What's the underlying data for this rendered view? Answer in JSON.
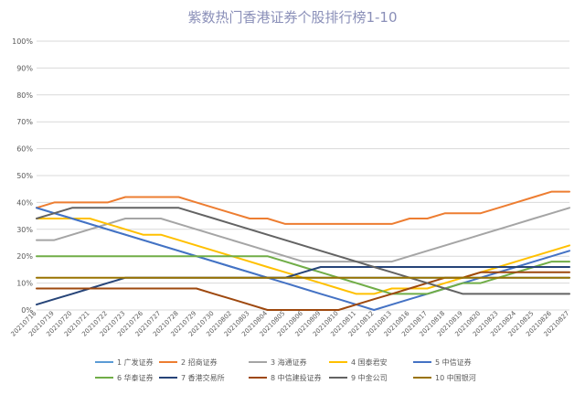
{
  "chart_data": {
    "type": "line",
    "title": "紫数热门香港证券个股排行榜1-10",
    "xlabel": "",
    "ylabel": "",
    "ylim": [
      0,
      100
    ],
    "yticks": [
      "0%",
      "10%",
      "20%",
      "30%",
      "40%",
      "50%",
      "60%",
      "70%",
      "80%",
      "90%",
      "100%"
    ],
    "x": [
      "20210716",
      "20210719",
      "20210720",
      "20210721",
      "20210722",
      "20210723",
      "20210726",
      "20210727",
      "20210728",
      "20210729",
      "20210730",
      "20210802",
      "20210803",
      "20210804",
      "20210805",
      "20210806",
      "20210809",
      "20210810",
      "20210811",
      "20210812",
      "20210813",
      "20210816",
      "20210817",
      "20210818",
      "20210819",
      "20210820",
      "20210823",
      "20210824",
      "20210825",
      "20210826",
      "20210827"
    ],
    "grid": true,
    "legend_position": "bottom",
    "series": [
      {
        "name": "1 广发证券",
        "color": "#5b9bd5",
        "values": [
          38,
          36,
          34,
          32,
          30,
          28,
          26,
          24,
          22,
          20,
          18,
          16,
          14,
          12,
          12,
          12,
          12,
          12,
          12,
          12,
          12,
          12,
          12,
          12,
          12,
          12,
          12,
          12,
          12,
          12,
          12
        ]
      },
      {
        "name": "2 招商证券",
        "color": "#ed7d31",
        "values": [
          38,
          40,
          40,
          40,
          40,
          42,
          42,
          42,
          42,
          40,
          38,
          36,
          34,
          34,
          32,
          32,
          32,
          32,
          32,
          32,
          32,
          34,
          34,
          36,
          36,
          36,
          38,
          40,
          42,
          44,
          44
        ]
      },
      {
        "name": "3 海通证券",
        "color": "#a5a5a5",
        "values": [
          26,
          26,
          28,
          30,
          32,
          34,
          34,
          34,
          32,
          30,
          28,
          26,
          24,
          22,
          20,
          18,
          18,
          18,
          18,
          18,
          18,
          20,
          22,
          24,
          26,
          28,
          30,
          32,
          34,
          36,
          38
        ]
      },
      {
        "name": "4 国泰君安",
        "color": "#ffc000",
        "values": [
          34,
          34,
          34,
          34,
          32,
          30,
          28,
          28,
          26,
          24,
          22,
          20,
          18,
          16,
          14,
          12,
          10,
          8,
          6,
          6,
          8,
          8,
          8,
          10,
          12,
          14,
          16,
          18,
          20,
          22,
          24
        ]
      },
      {
        "name": "5 中信证券",
        "color": "#4472c4",
        "values": [
          38,
          36,
          34,
          32,
          30,
          28,
          26,
          24,
          22,
          20,
          18,
          16,
          14,
          12,
          10,
          8,
          6,
          4,
          2,
          0,
          2,
          4,
          6,
          8,
          10,
          12,
          14,
          16,
          18,
          20,
          22
        ]
      },
      {
        "name": "6 华泰证券",
        "color": "#70ad47",
        "values": [
          20,
          20,
          20,
          20,
          20,
          20,
          20,
          20,
          20,
          20,
          20,
          20,
          20,
          20,
          18,
          16,
          14,
          12,
          10,
          8,
          6,
          6,
          6,
          8,
          10,
          10,
          12,
          14,
          16,
          18,
          18
        ]
      },
      {
        "name": "7 香港交易所",
        "color": "#264478",
        "values": [
          2,
          4,
          6,
          8,
          10,
          12,
          12,
          12,
          12,
          12,
          12,
          12,
          12,
          12,
          12,
          14,
          16,
          16,
          16,
          16,
          16,
          16,
          16,
          16,
          16,
          16,
          16,
          16,
          16,
          16,
          16
        ]
      },
      {
        "name": "8 中信建投证券",
        "color": "#9e480e",
        "values": [
          8,
          8,
          8,
          8,
          8,
          8,
          8,
          8,
          8,
          8,
          6,
          4,
          2,
          0,
          0,
          0,
          0,
          0,
          2,
          4,
          6,
          8,
          10,
          12,
          12,
          14,
          14,
          14,
          14,
          14,
          14
        ]
      },
      {
        "name": "9 中金公司",
        "color": "#636363",
        "values": [
          34,
          36,
          38,
          38,
          38,
          38,
          38,
          38,
          38,
          36,
          34,
          32,
          30,
          28,
          26,
          24,
          22,
          20,
          18,
          16,
          14,
          12,
          10,
          8,
          6,
          6,
          6,
          6,
          6,
          6,
          6
        ]
      },
      {
        "name": "10 中国银河",
        "color": "#997300",
        "values": [
          12,
          12,
          12,
          12,
          12,
          12,
          12,
          12,
          12,
          12,
          12,
          12,
          12,
          12,
          12,
          12,
          12,
          12,
          12,
          12,
          12,
          12,
          12,
          12,
          12,
          12,
          12,
          12,
          12,
          12,
          12
        ]
      }
    ]
  }
}
